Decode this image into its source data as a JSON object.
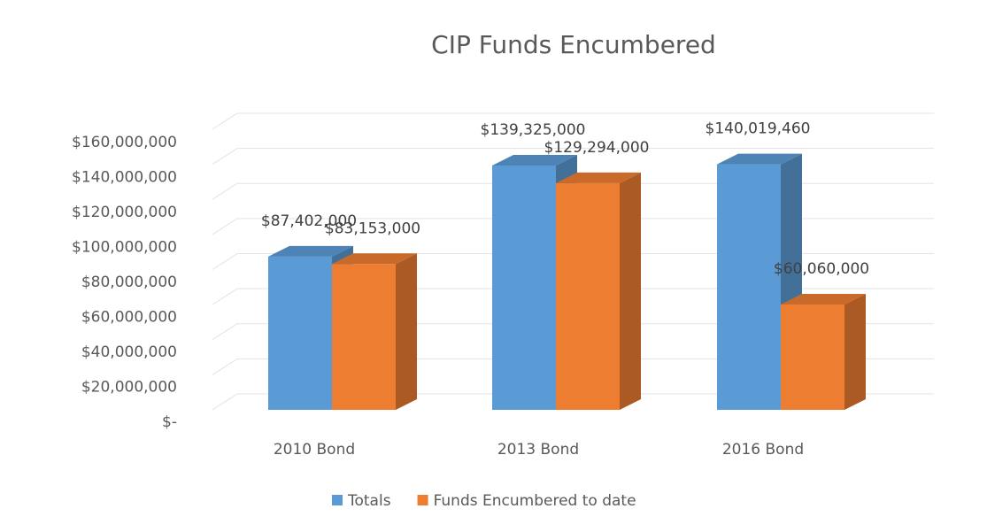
{
  "chart_data": {
    "type": "bar3d",
    "title": "CIP Funds Encumbered",
    "categories": [
      "2010 Bond",
      "2013 Bond",
      "2016 Bond"
    ],
    "series": [
      {
        "name": "Totals",
        "color": "#5b9bd5",
        "values": [
          87402000,
          139325000,
          140019460
        ],
        "value_labels": [
          "$87,402,000",
          "$139,325,000",
          "$140,019,460"
        ]
      },
      {
        "name": "Funds Encumbered to date",
        "color": "#ed7d31",
        "values": [
          83153000,
          129294000,
          60060000
        ],
        "value_labels": [
          "$83,153,000",
          "$129,294,000",
          "$60,060,000"
        ]
      }
    ],
    "ylim": [
      0,
      160000000
    ],
    "yticks": [
      {
        "value": 0,
        "label": "$-"
      },
      {
        "value": 20000000,
        "label": "$20,000,000"
      },
      {
        "value": 40000000,
        "label": "$40,000,000"
      },
      {
        "value": 60000000,
        "label": "$60,000,000"
      },
      {
        "value": 80000000,
        "label": "$80,000,000"
      },
      {
        "value": 100000000,
        "label": "$100,000,000"
      },
      {
        "value": 120000000,
        "label": "$120,000,000"
      },
      {
        "value": 140000000,
        "label": "$140,000,000"
      },
      {
        "value": 160000000,
        "label": "$160,000,000"
      }
    ],
    "grid": true,
    "legend": "bottom"
  }
}
